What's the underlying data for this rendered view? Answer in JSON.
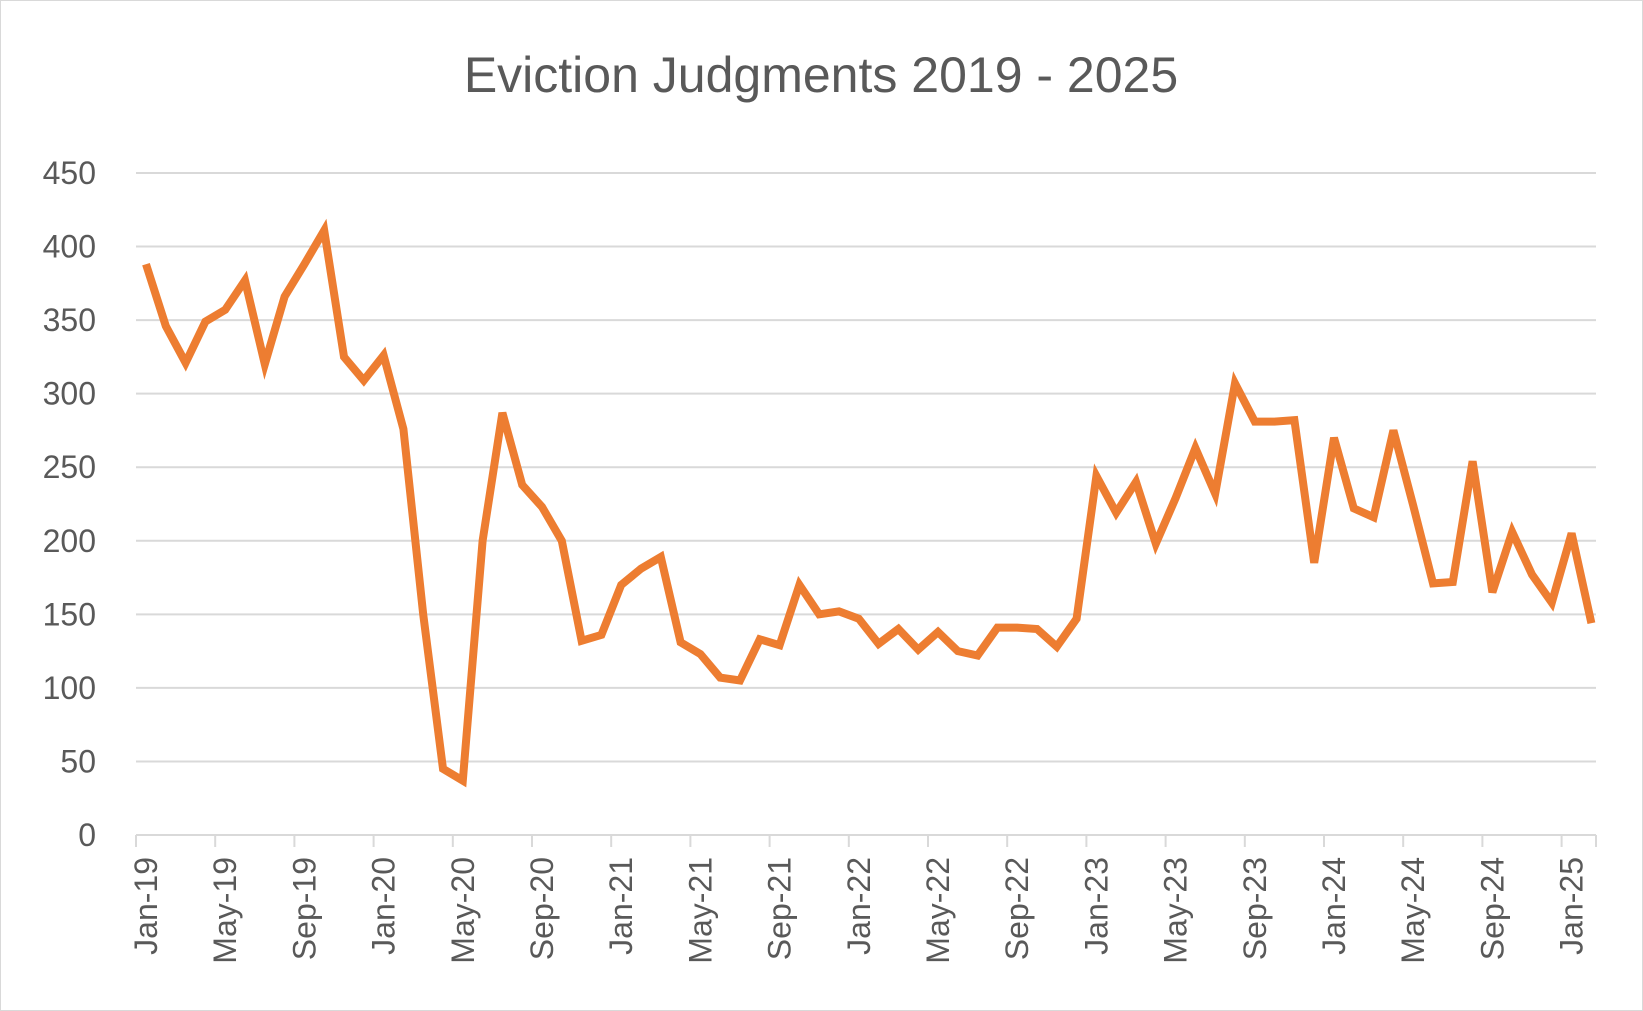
{
  "chart_data": {
    "type": "line",
    "title": "Eviction Judgments 2019 - 2025",
    "xlabel": "",
    "ylabel": "",
    "ylim": [
      0,
      450
    ],
    "yticks": [
      0,
      50,
      100,
      150,
      200,
      250,
      300,
      350,
      400,
      450
    ],
    "xtick_labels": [
      "Jan-19",
      "May-19",
      "Sep-19",
      "Jan-20",
      "May-20",
      "Sep-20",
      "Jan-21",
      "May-21",
      "Sep-21",
      "Jan-22",
      "May-22",
      "Sep-22",
      "Jan-23",
      "May-23",
      "Sep-23",
      "Jan-24",
      "May-24",
      "Sep-24",
      "Jan-25"
    ],
    "grid": true,
    "legend": "none",
    "line_color": "#ED7D31",
    "grid_color": "#d9d9d9",
    "x": [
      "Jan-19",
      "Feb-19",
      "Mar-19",
      "Apr-19",
      "May-19",
      "Jun-19",
      "Jul-19",
      "Aug-19",
      "Sep-19",
      "Oct-19",
      "Nov-19",
      "Dec-19",
      "Jan-20",
      "Feb-20",
      "Mar-20",
      "Apr-20",
      "May-20",
      "Jun-20",
      "Jul-20",
      "Aug-20",
      "Sep-20",
      "Oct-20",
      "Nov-20",
      "Dec-20",
      "Jan-21",
      "Feb-21",
      "Mar-21",
      "Apr-21",
      "May-21",
      "Jun-21",
      "Jul-21",
      "Aug-21",
      "Sep-21",
      "Oct-21",
      "Nov-21",
      "Dec-21",
      "Jan-22",
      "Feb-22",
      "Mar-22",
      "Apr-22",
      "May-22",
      "Jun-22",
      "Jul-22",
      "Aug-22",
      "Sep-22",
      "Oct-22",
      "Nov-22",
      "Dec-22",
      "Jan-23",
      "Feb-23",
      "Mar-23",
      "Apr-23",
      "May-23",
      "Jun-23",
      "Jul-23",
      "Aug-23",
      "Sep-23",
      "Oct-23",
      "Nov-23",
      "Dec-23",
      "Jan-24",
      "Feb-24",
      "Mar-24",
      "Apr-24",
      "May-24",
      "Jun-24",
      "Jul-24",
      "Aug-24",
      "Sep-24",
      "Oct-24",
      "Nov-24",
      "Dec-24",
      "Jan-25",
      "Feb-25"
    ],
    "values": [
      388,
      346,
      321,
      349,
      357,
      377,
      320,
      366,
      388,
      411,
      325,
      309,
      326,
      276,
      150,
      45,
      37,
      200,
      287,
      238,
      223,
      200,
      132,
      136,
      170,
      181,
      189,
      131,
      123,
      107,
      105,
      133,
      129,
      170,
      150,
      152,
      147,
      130,
      140,
      126,
      138,
      125,
      122,
      141,
      141,
      140,
      128,
      147,
      244,
      219,
      240,
      198,
      229,
      263,
      232,
      307,
      281,
      281,
      282,
      185,
      270,
      222,
      216,
      275,
      224,
      171,
      172,
      254,
      165,
      206,
      177,
      158,
      205,
      144
    ]
  }
}
